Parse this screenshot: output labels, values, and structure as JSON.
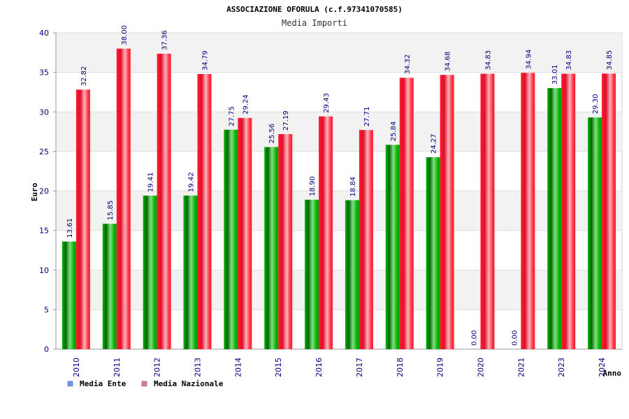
{
  "chart_data": {
    "type": "bar",
    "title": "ASSOCIAZIONE OFORULA (c.f.97341070585)",
    "subtitle": "Media Importi",
    "xlabel": "Anno",
    "ylabel": "Euro",
    "ylim": [
      0,
      40
    ],
    "yticks": [
      0,
      5,
      10,
      15,
      20,
      25,
      30,
      35,
      40
    ],
    "grid": true,
    "legend_position": "bottom-left",
    "categories": [
      "2010",
      "2011",
      "2012",
      "2013",
      "2014",
      "2015",
      "2016",
      "2017",
      "2018",
      "2019",
      "2020",
      "2021",
      "2023",
      "2024"
    ],
    "series": [
      {
        "name": "Media Ente",
        "color": "#00a000",
        "legend_color": "#6699ff",
        "values": [
          13.61,
          15.85,
          19.41,
          19.42,
          27.75,
          25.56,
          18.9,
          18.84,
          25.84,
          24.27,
          0,
          0,
          33.01,
          29.3
        ],
        "labels": [
          "13.61",
          "15.85",
          "19.41",
          "19.42",
          "27.75",
          "25.56",
          "18.90",
          "18.84",
          "25.84",
          "24.27",
          "0.00",
          "0.00",
          "33.01",
          "29.30"
        ]
      },
      {
        "name": "Media Nazionale",
        "color": "#ff1a2e",
        "legend_color": "#dd77aa",
        "values": [
          32.82,
          38.0,
          37.36,
          34.79,
          29.24,
          27.19,
          29.43,
          27.71,
          34.32,
          34.68,
          34.83,
          34.94,
          34.83,
          34.85
        ],
        "labels": [
          "32.82",
          "38.00",
          "37.36",
          "34.79",
          "29.24",
          "27.19",
          "29.43",
          "27.71",
          "34.32",
          "34.68",
          "34.83",
          "34.94",
          "34.83",
          "34.85"
        ]
      }
    ]
  }
}
